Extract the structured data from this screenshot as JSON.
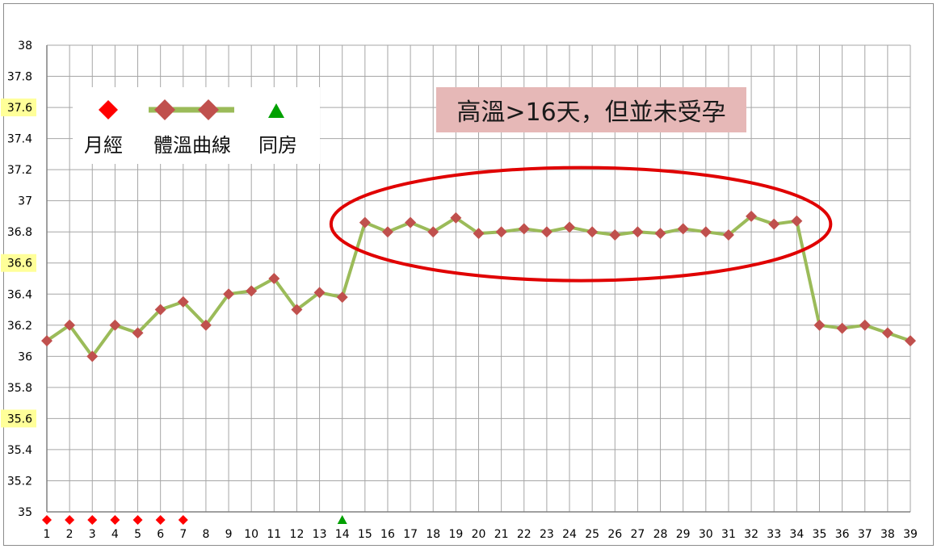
{
  "chart_data": {
    "type": "line",
    "title": "",
    "xlabel": "",
    "ylabel": "",
    "ylim": [
      35,
      38
    ],
    "y_ticks": [
      "35",
      "35.2",
      "35.4",
      "35.6",
      "35.8",
      "36",
      "36.2",
      "36.4",
      "36.6",
      "36.8",
      "37",
      "37.2",
      "37.4",
      "37.6",
      "37.8",
      "38"
    ],
    "highlighted_y_ticks": [
      "35.6",
      "36.6",
      "37.6"
    ],
    "x": [
      1,
      2,
      3,
      4,
      5,
      6,
      7,
      8,
      9,
      10,
      11,
      12,
      13,
      14,
      15,
      16,
      17,
      18,
      19,
      20,
      21,
      22,
      23,
      24,
      25,
      26,
      27,
      28,
      29,
      30,
      31,
      32,
      33,
      34,
      35,
      36,
      37,
      38,
      39
    ],
    "grid": true,
    "legend_position": "top-left",
    "series": [
      {
        "name": "體溫曲線",
        "color": "#9bbb59",
        "marker_color": "#c0504d",
        "values": [
          36.1,
          36.2,
          36.0,
          36.2,
          36.15,
          36.3,
          36.35,
          36.2,
          36.4,
          36.42,
          36.5,
          36.3,
          36.41,
          36.38,
          36.86,
          36.8,
          36.86,
          36.8,
          36.89,
          36.79,
          36.8,
          36.82,
          36.8,
          36.83,
          36.8,
          36.78,
          36.8,
          36.79,
          36.82,
          36.8,
          36.78,
          36.9,
          36.85,
          36.87,
          36.2,
          36.18,
          36.2,
          36.15,
          36.1
        ]
      },
      {
        "name": "月經",
        "color": "#ff0000",
        "marker": "diamond",
        "days": [
          1,
          2,
          3,
          4,
          5,
          6,
          7
        ]
      },
      {
        "name": "同房",
        "color": "#00a000",
        "marker": "triangle",
        "days": [
          14
        ]
      }
    ],
    "annotations": {
      "callout_text": "高溫>16天，但並未受孕",
      "ellipse_color": "#e00000"
    }
  },
  "legend": {
    "menstruation_label": "月經",
    "temp_curve_label": "體溫曲線",
    "intercourse_label": "同房"
  },
  "colors": {
    "grid": "#a6a6a6",
    "tick_highlight": "#ffff99"
  }
}
